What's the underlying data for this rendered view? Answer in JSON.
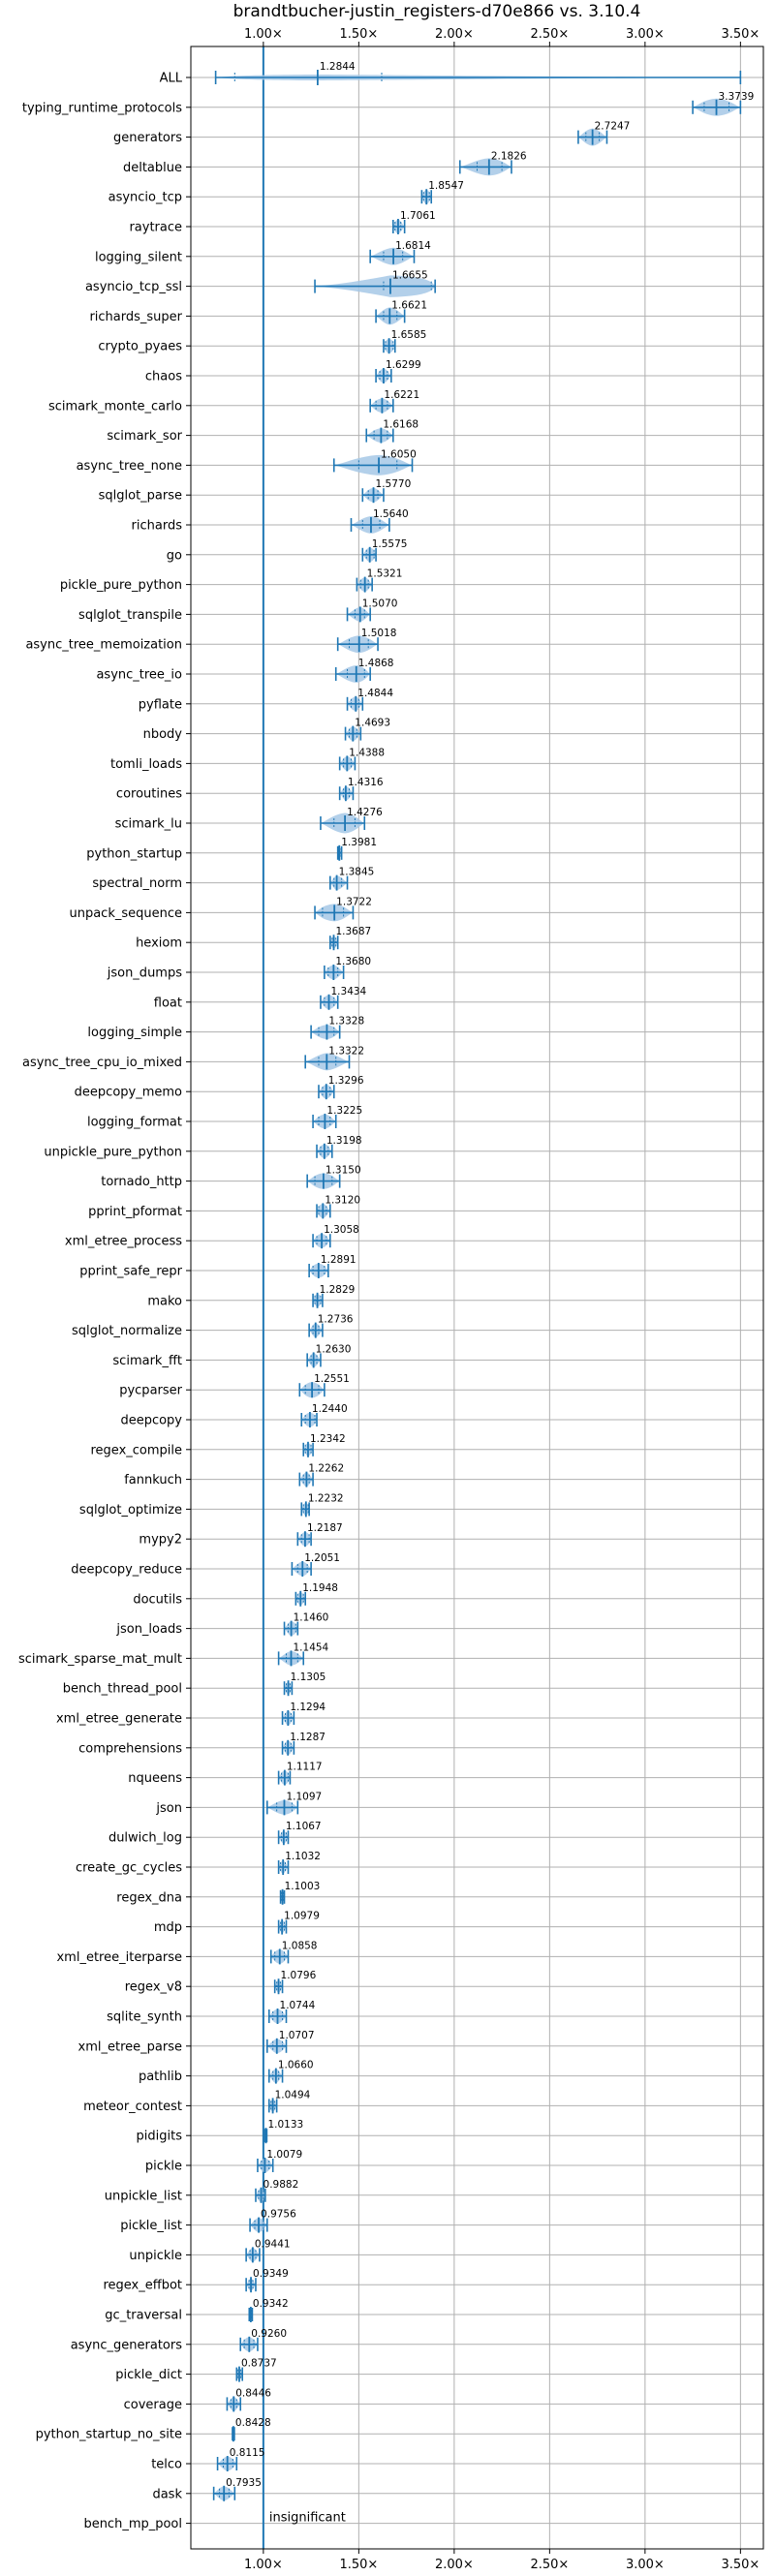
{
  "chart_data": {
    "type": "violin",
    "title": "brandtbucher-justin_registers-d70e866 vs. 3.10.4",
    "xlabel": "",
    "ylabel": "",
    "xlim": [
      0.62,
      3.62
    ],
    "x_ticks": [
      1.0,
      1.5,
      2.0,
      2.5,
      3.0,
      3.5
    ],
    "x_tick_labels": [
      "1.00×",
      "1.50×",
      "2.00×",
      "2.50×",
      "3.00×",
      "3.50×"
    ],
    "reference_line": 1.0,
    "grid": true,
    "colors": {
      "violin": "#a6c8e6",
      "marker": "#1f77b4",
      "reference": "#1f77b4",
      "grid": "#b0b0b0"
    },
    "annotation": "insignificant",
    "benchmarks": [
      {
        "name": "ALL",
        "median": 1.2844,
        "label": "1.2844",
        "min": 0.75,
        "max": 3.5,
        "q1": 0.85,
        "q3": 1.62,
        "width": 0.2
      },
      {
        "name": "typing_runtime_protocols",
        "median": 3.3739,
        "label": "3.3739",
        "min": 3.25,
        "max": 3.5,
        "q1": 3.31,
        "q3": 3.44,
        "width": 0.6
      },
      {
        "name": "generators",
        "median": 2.7247,
        "label": "2.7247",
        "min": 2.65,
        "max": 2.8,
        "q1": 2.69,
        "q3": 2.76,
        "width": 0.6
      },
      {
        "name": "deltablue",
        "median": 2.1826,
        "label": "2.1826",
        "min": 2.03,
        "max": 2.3,
        "q1": 2.12,
        "q3": 2.25,
        "width": 0.6
      },
      {
        "name": "asyncio_tcp",
        "median": 1.8547,
        "label": "1.8547",
        "min": 1.83,
        "max": 1.88,
        "q1": 1.84,
        "q3": 1.87,
        "width": 0.5
      },
      {
        "name": "raytrace",
        "median": 1.7061,
        "label": "1.7061",
        "min": 1.68,
        "max": 1.74,
        "q1": 1.69,
        "q3": 1.72,
        "width": 0.5
      },
      {
        "name": "logging_silent",
        "median": 1.6814,
        "label": "1.6814",
        "min": 1.56,
        "max": 1.79,
        "q1": 1.63,
        "q3": 1.73,
        "width": 0.6
      },
      {
        "name": "asyncio_tcp_ssl",
        "median": 1.6655,
        "label": "1.6655",
        "min": 1.27,
        "max": 1.9,
        "q1": 1.63,
        "q3": 1.88,
        "width": 0.75
      },
      {
        "name": "richards_super",
        "median": 1.6621,
        "label": "1.6621",
        "min": 1.59,
        "max": 1.74,
        "q1": 1.63,
        "q3": 1.7,
        "width": 0.6
      },
      {
        "name": "crypto_pyaes",
        "median": 1.6585,
        "label": "1.6585",
        "min": 1.63,
        "max": 1.69,
        "q1": 1.64,
        "q3": 1.68,
        "width": 0.5
      },
      {
        "name": "chaos",
        "median": 1.6299,
        "label": "1.6299",
        "min": 1.59,
        "max": 1.67,
        "q1": 1.61,
        "q3": 1.65,
        "width": 0.5
      },
      {
        "name": "scimark_monte_carlo",
        "median": 1.6221,
        "label": "1.6221",
        "min": 1.56,
        "max": 1.68,
        "q1": 1.59,
        "q3": 1.65,
        "width": 0.5
      },
      {
        "name": "scimark_sor",
        "median": 1.6168,
        "label": "1.6168",
        "min": 1.54,
        "max": 1.68,
        "q1": 1.58,
        "q3": 1.65,
        "width": 0.5
      },
      {
        "name": "async_tree_none",
        "median": 1.605,
        "label": "1.6050",
        "min": 1.37,
        "max": 1.78,
        "q1": 1.5,
        "q3": 1.7,
        "width": 0.7
      },
      {
        "name": "sqlglot_parse",
        "median": 1.577,
        "label": "1.5770",
        "min": 1.52,
        "max": 1.63,
        "q1": 1.55,
        "q3": 1.6,
        "width": 0.5
      },
      {
        "name": "richards",
        "median": 1.564,
        "label": "1.5640",
        "min": 1.46,
        "max": 1.66,
        "q1": 1.52,
        "q3": 1.61,
        "width": 0.6
      },
      {
        "name": "go",
        "median": 1.5575,
        "label": "1.5575",
        "min": 1.52,
        "max": 1.59,
        "q1": 1.54,
        "q3": 1.58,
        "width": 0.5
      },
      {
        "name": "pickle_pure_python",
        "median": 1.5321,
        "label": "1.5321",
        "min": 1.49,
        "max": 1.57,
        "q1": 1.51,
        "q3": 1.55,
        "width": 0.5
      },
      {
        "name": "sqlglot_transpile",
        "median": 1.507,
        "label": "1.5070",
        "min": 1.44,
        "max": 1.56,
        "q1": 1.48,
        "q3": 1.53,
        "width": 0.5
      },
      {
        "name": "async_tree_memoization",
        "median": 1.5018,
        "label": "1.5018",
        "min": 1.39,
        "max": 1.6,
        "q1": 1.45,
        "q3": 1.55,
        "width": 0.6
      },
      {
        "name": "async_tree_io",
        "median": 1.4868,
        "label": "1.4868",
        "min": 1.38,
        "max": 1.56,
        "q1": 1.44,
        "q3": 1.53,
        "width": 0.6
      },
      {
        "name": "pyflate",
        "median": 1.4844,
        "label": "1.4844",
        "min": 1.44,
        "max": 1.52,
        "q1": 1.46,
        "q3": 1.5,
        "width": 0.5
      },
      {
        "name": "nbody",
        "median": 1.4693,
        "label": "1.4693",
        "min": 1.43,
        "max": 1.51,
        "q1": 1.45,
        "q3": 1.49,
        "width": 0.5
      },
      {
        "name": "tomli_loads",
        "median": 1.4388,
        "label": "1.4388",
        "min": 1.4,
        "max": 1.48,
        "q1": 1.42,
        "q3": 1.46,
        "width": 0.5
      },
      {
        "name": "coroutines",
        "median": 1.4316,
        "label": "1.4316",
        "min": 1.4,
        "max": 1.47,
        "q1": 1.42,
        "q3": 1.45,
        "width": 0.5
      },
      {
        "name": "scimark_lu",
        "median": 1.4276,
        "label": "1.4276",
        "min": 1.3,
        "max": 1.53,
        "q1": 1.37,
        "q3": 1.48,
        "width": 0.7
      },
      {
        "name": "python_startup",
        "median": 1.3981,
        "label": "1.3981",
        "min": 1.39,
        "max": 1.41,
        "q1": 1.395,
        "q3": 1.402,
        "width": 0.4
      },
      {
        "name": "spectral_norm",
        "median": 1.3845,
        "label": "1.3845",
        "min": 1.35,
        "max": 1.44,
        "q1": 1.37,
        "q3": 1.41,
        "width": 0.5
      },
      {
        "name": "unpack_sequence",
        "median": 1.3722,
        "label": "1.3722",
        "min": 1.27,
        "max": 1.47,
        "q1": 1.31,
        "q3": 1.42,
        "width": 0.6
      },
      {
        "name": "hexiom",
        "median": 1.3687,
        "label": "1.3687",
        "min": 1.35,
        "max": 1.39,
        "q1": 1.36,
        "q3": 1.38,
        "width": 0.45
      },
      {
        "name": "json_dumps",
        "median": 1.368,
        "label": "1.3680",
        "min": 1.32,
        "max": 1.42,
        "q1": 1.34,
        "q3": 1.39,
        "width": 0.5
      },
      {
        "name": "float",
        "median": 1.3434,
        "label": "1.3434",
        "min": 1.3,
        "max": 1.39,
        "q1": 1.32,
        "q3": 1.37,
        "width": 0.5
      },
      {
        "name": "logging_simple",
        "median": 1.3328,
        "label": "1.3328",
        "min": 1.25,
        "max": 1.4,
        "q1": 1.29,
        "q3": 1.37,
        "width": 0.5
      },
      {
        "name": "async_tree_cpu_io_mixed",
        "median": 1.3322,
        "label": "1.3322",
        "min": 1.22,
        "max": 1.45,
        "q1": 1.29,
        "q3": 1.38,
        "width": 0.6
      },
      {
        "name": "deepcopy_memo",
        "median": 1.3296,
        "label": "1.3296",
        "min": 1.29,
        "max": 1.37,
        "q1": 1.31,
        "q3": 1.35,
        "width": 0.5
      },
      {
        "name": "logging_format",
        "median": 1.3225,
        "label": "1.3225",
        "min": 1.26,
        "max": 1.38,
        "q1": 1.29,
        "q3": 1.35,
        "width": 0.5
      },
      {
        "name": "unpickle_pure_python",
        "median": 1.3198,
        "label": "1.3198",
        "min": 1.28,
        "max": 1.36,
        "q1": 1.3,
        "q3": 1.34,
        "width": 0.5
      },
      {
        "name": "tornado_http",
        "median": 1.315,
        "label": "1.3150",
        "min": 1.23,
        "max": 1.4,
        "q1": 1.27,
        "q3": 1.36,
        "width": 0.55
      },
      {
        "name": "pprint_pformat",
        "median": 1.312,
        "label": "1.3120",
        "min": 1.28,
        "max": 1.35,
        "q1": 1.29,
        "q3": 1.33,
        "width": 0.5
      },
      {
        "name": "xml_etree_process",
        "median": 1.3058,
        "label": "1.3058",
        "min": 1.26,
        "max": 1.35,
        "q1": 1.28,
        "q3": 1.33,
        "width": 0.5
      },
      {
        "name": "pprint_safe_repr",
        "median": 1.2891,
        "label": "1.2891",
        "min": 1.24,
        "max": 1.34,
        "q1": 1.26,
        "q3": 1.32,
        "width": 0.5
      },
      {
        "name": "mako",
        "median": 1.2829,
        "label": "1.2829",
        "min": 1.26,
        "max": 1.31,
        "q1": 1.27,
        "q3": 1.3,
        "width": 0.45
      },
      {
        "name": "sqlglot_normalize",
        "median": 1.2736,
        "label": "1.2736",
        "min": 1.24,
        "max": 1.31,
        "q1": 1.26,
        "q3": 1.29,
        "width": 0.5
      },
      {
        "name": "scimark_fft",
        "median": 1.263,
        "label": "1.2630",
        "min": 1.23,
        "max": 1.3,
        "q1": 1.25,
        "q3": 1.28,
        "width": 0.5
      },
      {
        "name": "pycparser",
        "median": 1.2551,
        "label": "1.2551",
        "min": 1.19,
        "max": 1.32,
        "q1": 1.22,
        "q3": 1.29,
        "width": 0.55
      },
      {
        "name": "deepcopy",
        "median": 1.244,
        "label": "1.2440",
        "min": 1.2,
        "max": 1.28,
        "q1": 1.22,
        "q3": 1.27,
        "width": 0.5
      },
      {
        "name": "regex_compile",
        "median": 1.2342,
        "label": "1.2342",
        "min": 1.21,
        "max": 1.26,
        "q1": 1.22,
        "q3": 1.25,
        "width": 0.45
      },
      {
        "name": "fannkuch",
        "median": 1.2262,
        "label": "1.2262",
        "min": 1.19,
        "max": 1.26,
        "q1": 1.21,
        "q3": 1.24,
        "width": 0.5
      },
      {
        "name": "sqlglot_optimize",
        "median": 1.2232,
        "label": "1.2232",
        "min": 1.2,
        "max": 1.24,
        "q1": 1.21,
        "q3": 1.235,
        "width": 0.45
      },
      {
        "name": "mypy2",
        "median": 1.2187,
        "label": "1.2187",
        "min": 1.18,
        "max": 1.25,
        "q1": 1.2,
        "q3": 1.24,
        "width": 0.5
      },
      {
        "name": "deepcopy_reduce",
        "median": 1.2051,
        "label": "1.2051",
        "min": 1.15,
        "max": 1.25,
        "q1": 1.18,
        "q3": 1.23,
        "width": 0.5
      },
      {
        "name": "docutils",
        "median": 1.1948,
        "label": "1.1948",
        "min": 1.17,
        "max": 1.22,
        "q1": 1.18,
        "q3": 1.21,
        "width": 0.45
      },
      {
        "name": "json_loads",
        "median": 1.146,
        "label": "1.1460",
        "min": 1.11,
        "max": 1.18,
        "q1": 1.13,
        "q3": 1.17,
        "width": 0.5
      },
      {
        "name": "scimark_sparse_mat_mult",
        "median": 1.1454,
        "label": "1.1454",
        "min": 1.08,
        "max": 1.21,
        "q1": 1.12,
        "q3": 1.18,
        "width": 0.5
      },
      {
        "name": "bench_thread_pool",
        "median": 1.1305,
        "label": "1.1305",
        "min": 1.11,
        "max": 1.15,
        "q1": 1.12,
        "q3": 1.14,
        "width": 0.45
      },
      {
        "name": "xml_etree_generate",
        "median": 1.1294,
        "label": "1.1294",
        "min": 1.1,
        "max": 1.16,
        "q1": 1.115,
        "q3": 1.145,
        "width": 0.5
      },
      {
        "name": "comprehensions",
        "median": 1.1287,
        "label": "1.1287",
        "min": 1.1,
        "max": 1.16,
        "q1": 1.115,
        "q3": 1.145,
        "width": 0.5
      },
      {
        "name": "nqueens",
        "median": 1.1117,
        "label": "1.1117",
        "min": 1.08,
        "max": 1.14,
        "q1": 1.095,
        "q3": 1.13,
        "width": 0.5
      },
      {
        "name": "json",
        "median": 1.1097,
        "label": "1.1097",
        "min": 1.02,
        "max": 1.18,
        "q1": 1.07,
        "q3": 1.15,
        "width": 0.5
      },
      {
        "name": "dulwich_log",
        "median": 1.1067,
        "label": "1.1067",
        "min": 1.08,
        "max": 1.13,
        "q1": 1.095,
        "q3": 1.12,
        "width": 0.45
      },
      {
        "name": "create_gc_cycles",
        "median": 1.1032,
        "label": "1.1032",
        "min": 1.08,
        "max": 1.13,
        "q1": 1.09,
        "q3": 1.115,
        "width": 0.45
      },
      {
        "name": "regex_dna",
        "median": 1.1003,
        "label": "1.1003",
        "min": 1.09,
        "max": 1.11,
        "q1": 1.095,
        "q3": 1.105,
        "width": 0.4
      },
      {
        "name": "mdp",
        "median": 1.0979,
        "label": "1.0979",
        "min": 1.08,
        "max": 1.12,
        "q1": 1.09,
        "q3": 1.11,
        "width": 0.45
      },
      {
        "name": "xml_etree_iterparse",
        "median": 1.0858,
        "label": "1.0858",
        "min": 1.04,
        "max": 1.13,
        "q1": 1.06,
        "q3": 1.11,
        "width": 0.5
      },
      {
        "name": "regex_v8",
        "median": 1.0796,
        "label": "1.0796",
        "min": 1.06,
        "max": 1.1,
        "q1": 1.07,
        "q3": 1.09,
        "width": 0.45
      },
      {
        "name": "sqlite_synth",
        "median": 1.0744,
        "label": "1.0744",
        "min": 1.03,
        "max": 1.12,
        "q1": 1.05,
        "q3": 1.1,
        "width": 0.5
      },
      {
        "name": "xml_etree_parse",
        "median": 1.0707,
        "label": "1.0707",
        "min": 1.02,
        "max": 1.12,
        "q1": 1.05,
        "q3": 1.1,
        "width": 0.5
      },
      {
        "name": "pathlib",
        "median": 1.066,
        "label": "1.0660",
        "min": 1.03,
        "max": 1.1,
        "q1": 1.05,
        "q3": 1.08,
        "width": 0.5
      },
      {
        "name": "meteor_contest",
        "median": 1.0494,
        "label": "1.0494",
        "min": 1.03,
        "max": 1.07,
        "q1": 1.04,
        "q3": 1.06,
        "width": 0.45
      },
      {
        "name": "pidigits",
        "median": 1.0133,
        "label": "1.0133",
        "min": 1.008,
        "max": 1.018,
        "q1": 1.011,
        "q3": 1.016,
        "width": 0.35
      },
      {
        "name": "pickle",
        "median": 1.0079,
        "label": "1.0079",
        "min": 0.97,
        "max": 1.05,
        "q1": 0.99,
        "q3": 1.03,
        "width": 0.5
      },
      {
        "name": "unpickle_list",
        "median": 0.9882,
        "label": "0.9882",
        "min": 0.96,
        "max": 1.01,
        "q1": 0.975,
        "q3": 1.0,
        "width": 0.5
      },
      {
        "name": "pickle_list",
        "median": 0.9756,
        "label": "0.9756",
        "min": 0.93,
        "max": 1.02,
        "q1": 0.955,
        "q3": 1.0,
        "width": 0.5
      },
      {
        "name": "unpickle",
        "median": 0.9441,
        "label": "0.9441",
        "min": 0.91,
        "max": 0.98,
        "q1": 0.93,
        "q3": 0.96,
        "width": 0.5
      },
      {
        "name": "regex_effbot",
        "median": 0.9349,
        "label": "0.9349",
        "min": 0.91,
        "max": 0.96,
        "q1": 0.925,
        "q3": 0.945,
        "width": 0.45
      },
      {
        "name": "gc_traversal",
        "median": 0.9342,
        "label": "0.9342",
        "min": 0.926,
        "max": 0.942,
        "q1": 0.93,
        "q3": 0.938,
        "width": 0.35
      },
      {
        "name": "async_generators",
        "median": 0.926,
        "label": "0.9260",
        "min": 0.88,
        "max": 0.97,
        "q1": 0.9,
        "q3": 0.95,
        "width": 0.5
      },
      {
        "name": "pickle_dict",
        "median": 0.8737,
        "label": "0.8737",
        "min": 0.86,
        "max": 0.89,
        "q1": 0.865,
        "q3": 0.882,
        "width": 0.45
      },
      {
        "name": "coverage",
        "median": 0.8446,
        "label": "0.8446",
        "min": 0.81,
        "max": 0.88,
        "q1": 0.83,
        "q3": 0.86,
        "width": 0.5
      },
      {
        "name": "python_startup_no_site",
        "median": 0.8428,
        "label": "0.8428",
        "min": 0.838,
        "max": 0.848,
        "q1": 0.84,
        "q3": 0.846,
        "width": 0.35
      },
      {
        "name": "telco",
        "median": 0.8115,
        "label": "0.8115",
        "min": 0.76,
        "max": 0.86,
        "q1": 0.79,
        "q3": 0.84,
        "width": 0.5
      },
      {
        "name": "dask",
        "median": 0.7935,
        "label": "0.7935",
        "min": 0.74,
        "max": 0.85,
        "q1": 0.77,
        "q3": 0.82,
        "width": 0.5
      },
      {
        "name": "bench_mp_pool",
        "median": null,
        "label": "",
        "insignificant": true
      }
    ]
  }
}
